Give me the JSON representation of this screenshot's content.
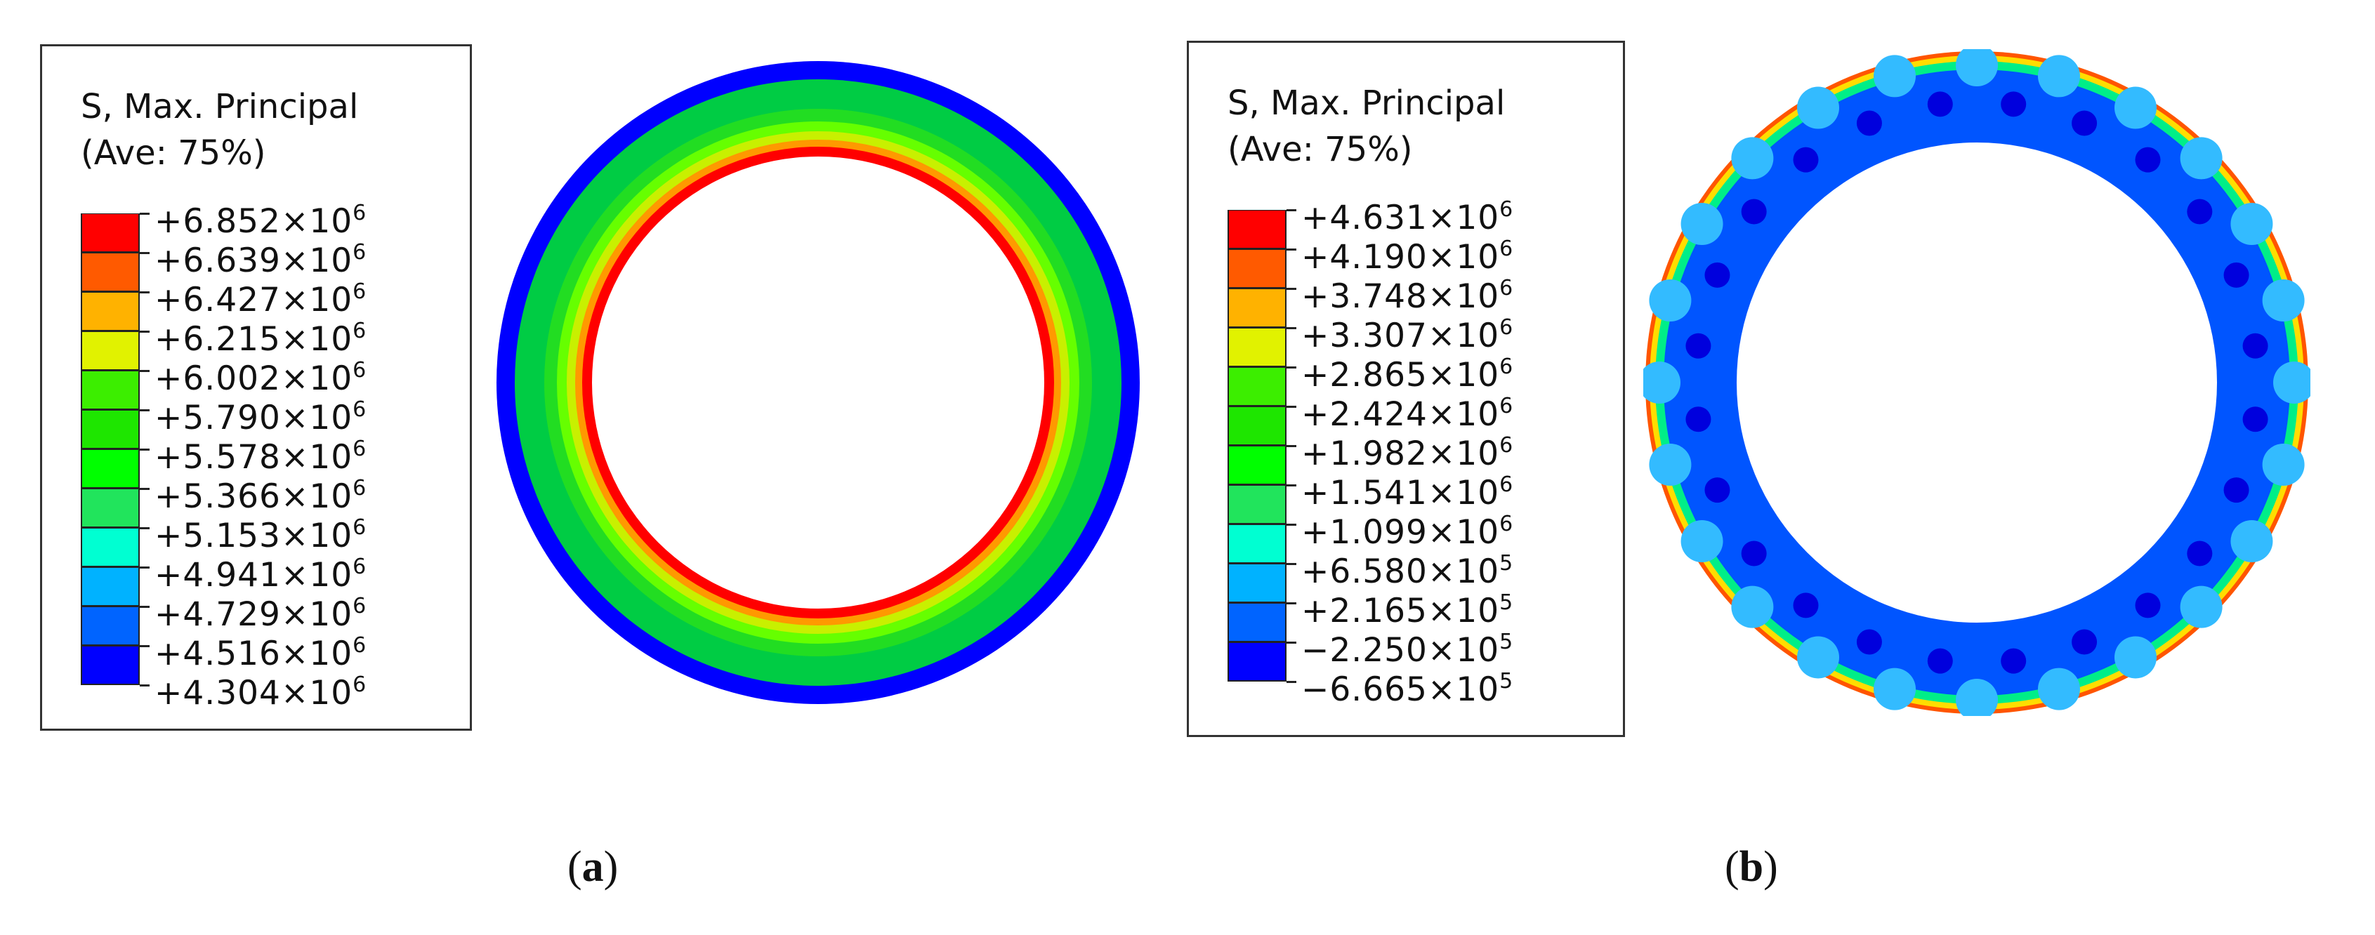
{
  "panels": [
    {
      "caption_open": "(",
      "caption_letter": "a",
      "caption_close": ")",
      "legend": {
        "title_line1": "S, Max. Principal",
        "title_line2": "(Ave: 75%)",
        "exponent_base": "×10",
        "values": [
          {
            "mantissa": "+6.852",
            "exp": "6"
          },
          {
            "mantissa": "+6.639",
            "exp": "6"
          },
          {
            "mantissa": "+6.427",
            "exp": "6"
          },
          {
            "mantissa": "+6.215",
            "exp": "6"
          },
          {
            "mantissa": "+6.002",
            "exp": "6"
          },
          {
            "mantissa": "+5.790",
            "exp": "6"
          },
          {
            "mantissa": "+5.578",
            "exp": "6"
          },
          {
            "mantissa": "+5.366",
            "exp": "6"
          },
          {
            "mantissa": "+5.153",
            "exp": "6"
          },
          {
            "mantissa": "+4.941",
            "exp": "6"
          },
          {
            "mantissa": "+4.729",
            "exp": "6"
          },
          {
            "mantissa": "+4.516",
            "exp": "6"
          },
          {
            "mantissa": "+4.304",
            "exp": "6"
          }
        ]
      }
    },
    {
      "caption_open": "(",
      "caption_letter": "b",
      "caption_close": ")",
      "legend": {
        "title_line1": "S, Max. Principal",
        "title_line2": "(Ave: 75%)",
        "exponent_base": "×10",
        "values": [
          {
            "mantissa": "+4.631",
            "exp": "6"
          },
          {
            "mantissa": "+4.190",
            "exp": "6"
          },
          {
            "mantissa": "+3.748",
            "exp": "6"
          },
          {
            "mantissa": "+3.307",
            "exp": "6"
          },
          {
            "mantissa": "+2.865",
            "exp": "6"
          },
          {
            "mantissa": "+2.424",
            "exp": "6"
          },
          {
            "mantissa": "+1.982",
            "exp": "6"
          },
          {
            "mantissa": "+1.541",
            "exp": "6"
          },
          {
            "mantissa": "+1.099",
            "exp": "6"
          },
          {
            "mantissa": "+6.580",
            "exp": "5"
          },
          {
            "mantissa": "+2.165",
            "exp": "5"
          },
          {
            "mantissa": "−2.250",
            "exp": "5"
          },
          {
            "mantissa": "−6.665",
            "exp": "5"
          }
        ]
      }
    }
  ],
  "colorbar": [
    "#ff0000",
    "#ff5a00",
    "#ffb200",
    "#e1f200",
    "#3cee00",
    "#1ee600",
    "#00ff00",
    "#21e45c",
    "#00ffd2",
    "#00b2ff",
    "#0064ff",
    "#0000ff"
  ],
  "ring_a_bands": [
    "#0000ff",
    "#00cc44",
    "#22dd22",
    "#66ff00",
    "#c8f000",
    "#ff9900",
    "#ff0000"
  ],
  "ring_b_colors": {
    "body": "#0055ff",
    "outer": "#00ee88",
    "edge_hot": "#ff5500",
    "edge_warm": "#ffdd00",
    "blob": "#0000dd"
  }
}
